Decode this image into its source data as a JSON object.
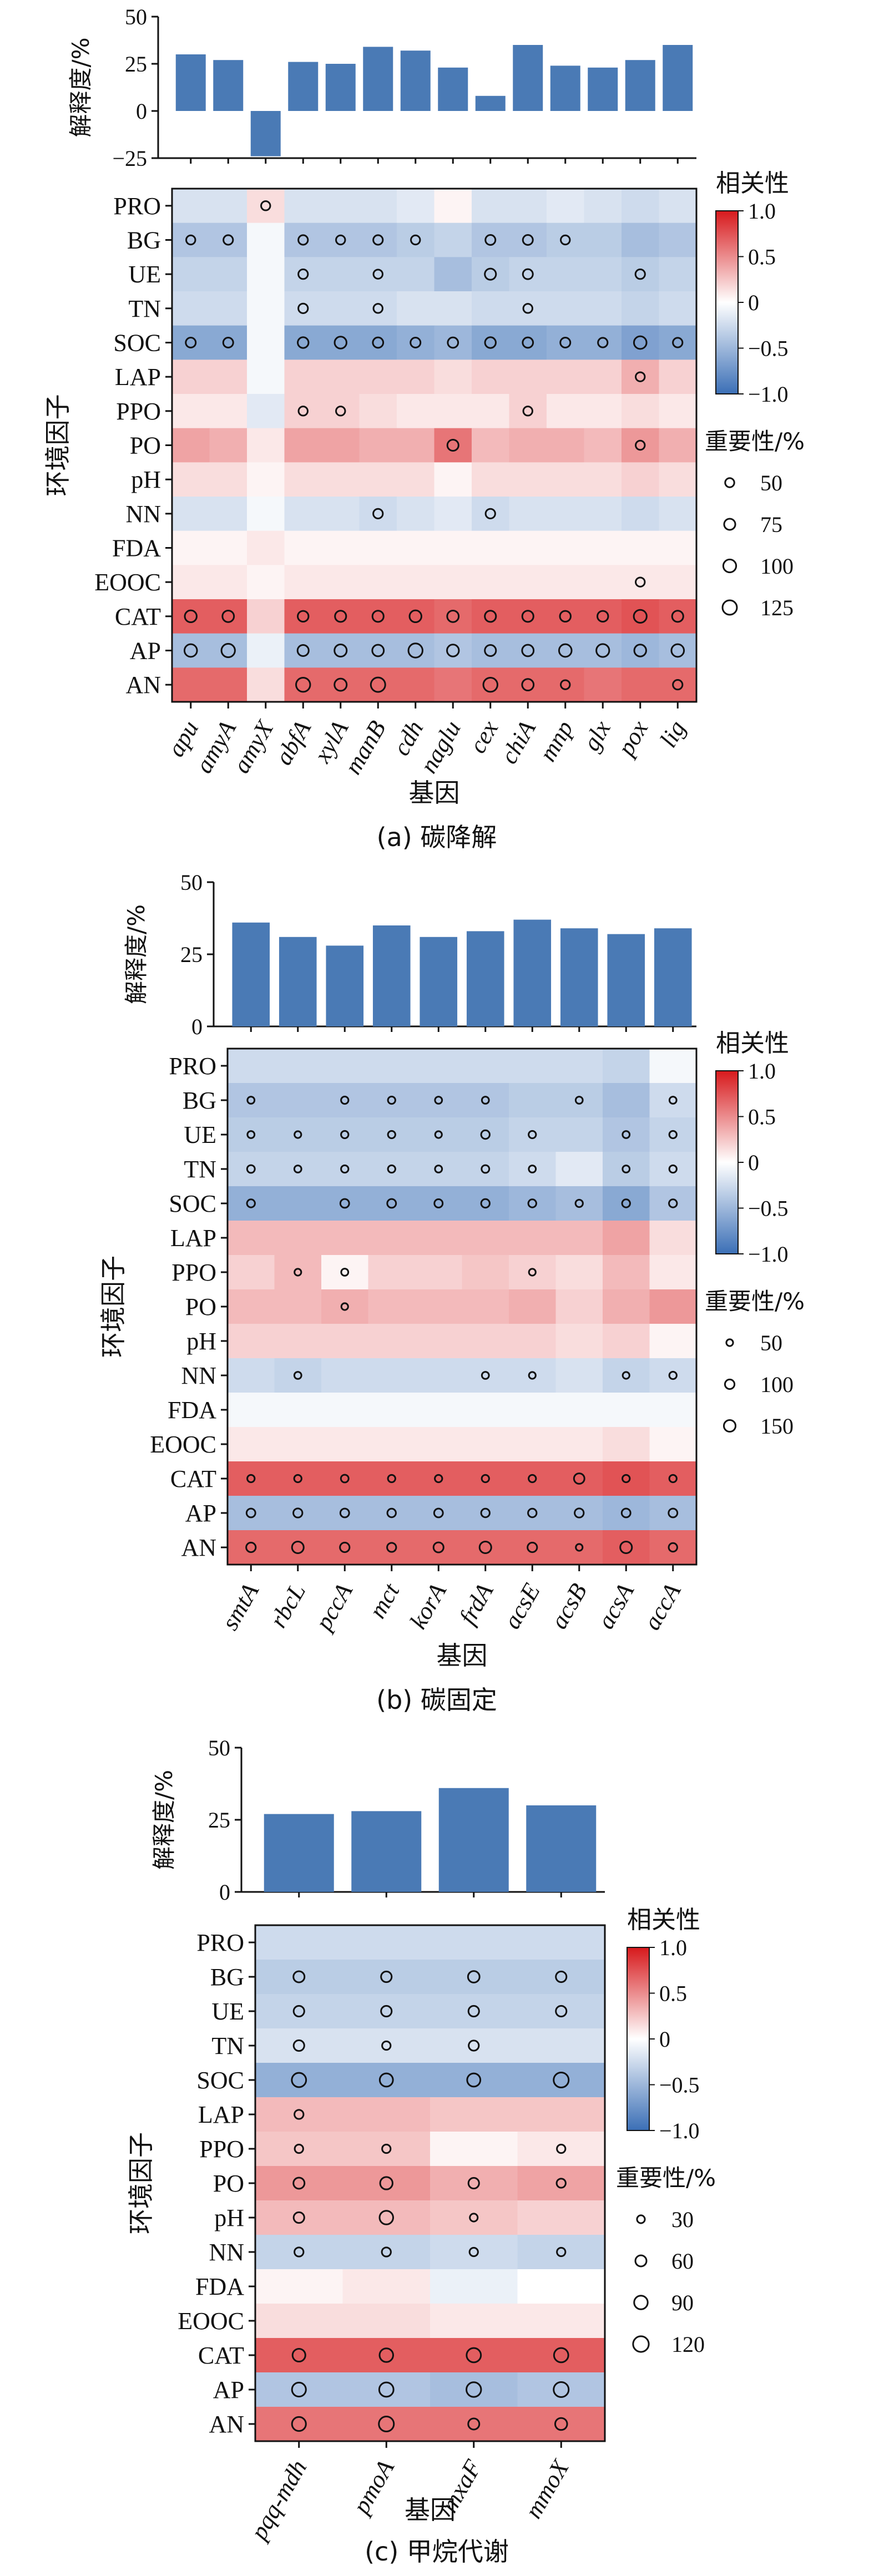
{
  "colorbar": {
    "low": "#3b6fb6",
    "mid": "#ffffff",
    "high": "#d7191c"
  },
  "bar_color": "#4a7ab5",
  "chart_data": [
    {
      "id": "a",
      "type": "heatmap",
      "caption": "(a) 碳降解",
      "xlabel": "基因",
      "ylabel": "环境因子",
      "bar_ylabel": "解释度/%",
      "bar_yticks": [
        "50",
        "25",
        "0",
        "−25"
      ],
      "bar_ylim": [
        -25,
        50
      ],
      "legend_corr_title": "相关性",
      "legend_corr_ticks": [
        "1.0",
        "0.5",
        "0",
        "−0.5",
        "−1.0"
      ],
      "legend_size_title": "重要性/%",
      "legend_size_values": [
        "50",
        "75",
        "100",
        "125"
      ],
      "genes": [
        "apu",
        "amyA",
        "amyX",
        "abfA",
        "xylA",
        "manB",
        "cdh",
        "naglu",
        "cex",
        "chiA",
        "mnp",
        "glx",
        "pox",
        "lig"
      ],
      "factors": [
        "PRO",
        "BG",
        "UE",
        "TN",
        "SOC",
        "LAP",
        "PPO",
        "PO",
        "pH",
        "NN",
        "FDA",
        "EOOC",
        "CAT",
        "AP",
        "AN"
      ],
      "explained": [
        30,
        27,
        -24,
        26,
        25,
        34,
        32,
        23,
        8,
        35,
        24,
        23,
        27,
        35
      ],
      "corr": [
        [
          -0.2,
          -0.2,
          0.15,
          -0.2,
          -0.2,
          -0.2,
          -0.15,
          0.05,
          -0.2,
          -0.2,
          -0.15,
          -0.2,
          -0.25,
          -0.2
        ],
        [
          -0.4,
          -0.4,
          -0.05,
          -0.4,
          -0.4,
          -0.4,
          -0.35,
          -0.3,
          -0.4,
          -0.4,
          -0.35,
          -0.35,
          -0.45,
          -0.4
        ],
        [
          -0.3,
          -0.3,
          -0.05,
          -0.3,
          -0.3,
          -0.3,
          -0.3,
          -0.45,
          -0.35,
          -0.3,
          -0.3,
          -0.3,
          -0.35,
          -0.3
        ],
        [
          -0.25,
          -0.25,
          -0.05,
          -0.25,
          -0.25,
          -0.25,
          -0.2,
          -0.2,
          -0.25,
          -0.25,
          -0.25,
          -0.25,
          -0.3,
          -0.25
        ],
        [
          -0.6,
          -0.6,
          -0.05,
          -0.6,
          -0.6,
          -0.6,
          -0.55,
          -0.5,
          -0.6,
          -0.6,
          -0.55,
          -0.55,
          -0.65,
          -0.6
        ],
        [
          0.2,
          0.2,
          -0.05,
          0.2,
          0.2,
          0.2,
          0.2,
          0.15,
          0.2,
          0.2,
          0.2,
          0.2,
          0.35,
          0.2
        ],
        [
          0.1,
          0.1,
          -0.15,
          0.2,
          0.2,
          0.15,
          0.1,
          0.1,
          0.1,
          0.2,
          0.1,
          0.1,
          0.15,
          0.1
        ],
        [
          0.4,
          0.35,
          0.1,
          0.4,
          0.4,
          0.35,
          0.35,
          0.6,
          0.3,
          0.35,
          0.35,
          0.3,
          0.45,
          0.35
        ],
        [
          0.15,
          0.15,
          0.05,
          0.15,
          0.15,
          0.15,
          0.15,
          0.05,
          0.15,
          0.15,
          0.15,
          0.15,
          0.2,
          0.15
        ],
        [
          -0.2,
          -0.2,
          -0.05,
          -0.2,
          -0.2,
          -0.25,
          -0.2,
          -0.15,
          -0.25,
          -0.2,
          -0.2,
          -0.2,
          -0.25,
          -0.2
        ],
        [
          0.05,
          0.05,
          0.1,
          0.05,
          0.05,
          0.05,
          0.05,
          0.05,
          0.05,
          0.05,
          0.05,
          0.05,
          0.05,
          0.05
        ],
        [
          0.1,
          0.1,
          0.05,
          0.1,
          0.1,
          0.1,
          0.1,
          0.1,
          0.1,
          0.1,
          0.1,
          0.1,
          0.1,
          0.1
        ],
        [
          0.7,
          0.7,
          0.2,
          0.7,
          0.7,
          0.7,
          0.7,
          0.65,
          0.7,
          0.7,
          0.7,
          0.7,
          0.75,
          0.7
        ],
        [
          -0.45,
          -0.45,
          -0.1,
          -0.45,
          -0.45,
          -0.45,
          -0.45,
          -0.4,
          -0.45,
          -0.45,
          -0.45,
          -0.45,
          -0.5,
          -0.45
        ],
        [
          0.65,
          0.65,
          0.15,
          0.65,
          0.65,
          0.65,
          0.65,
          0.6,
          0.65,
          0.65,
          0.65,
          0.6,
          0.65,
          0.65
        ]
      ],
      "importance": [
        [
          0,
          0,
          50,
          0,
          0,
          0,
          0,
          0,
          0,
          0,
          0,
          0,
          0,
          0
        ],
        [
          50,
          55,
          0,
          55,
          50,
          55,
          50,
          0,
          60,
          60,
          50,
          0,
          0,
          0
        ],
        [
          0,
          0,
          0,
          55,
          0,
          50,
          0,
          0,
          75,
          60,
          0,
          0,
          55,
          0
        ],
        [
          0,
          0,
          0,
          55,
          0,
          50,
          0,
          0,
          0,
          50,
          0,
          0,
          0,
          0
        ],
        [
          60,
          60,
          0,
          70,
          85,
          65,
          60,
          65,
          70,
          65,
          60,
          55,
          95,
          55
        ],
        [
          0,
          0,
          0,
          0,
          0,
          0,
          0,
          0,
          0,
          0,
          0,
          0,
          50,
          0
        ],
        [
          0,
          0,
          0,
          50,
          50,
          0,
          0,
          0,
          0,
          50,
          0,
          0,
          0,
          0
        ],
        [
          0,
          0,
          0,
          0,
          0,
          0,
          0,
          75,
          0,
          0,
          0,
          0,
          50,
          0
        ],
        [
          0,
          0,
          0,
          0,
          0,
          0,
          0,
          0,
          0,
          0,
          0,
          0,
          0,
          0
        ],
        [
          0,
          0,
          0,
          0,
          0,
          55,
          0,
          0,
          55,
          0,
          0,
          0,
          0,
          0
        ],
        [
          0,
          0,
          0,
          0,
          0,
          0,
          0,
          0,
          0,
          0,
          0,
          0,
          0,
          0
        ],
        [
          0,
          0,
          0,
          0,
          0,
          0,
          0,
          0,
          0,
          0,
          0,
          0,
          50,
          0
        ],
        [
          85,
          80,
          0,
          70,
          75,
          75,
          85,
          80,
          75,
          75,
          70,
          70,
          100,
          75
        ],
        [
          95,
          110,
          0,
          75,
          90,
          80,
          120,
          85,
          75,
          80,
          95,
          100,
          85,
          95
        ],
        [
          0,
          0,
          0,
          120,
          90,
          125,
          0,
          0,
          120,
          80,
          50,
          0,
          0,
          55
        ]
      ]
    },
    {
      "id": "b",
      "type": "heatmap",
      "caption": "(b) 碳固定",
      "xlabel": "基因",
      "ylabel": "环境因子",
      "bar_ylabel": "解释度/%",
      "bar_yticks": [
        "50",
        "25",
        "0"
      ],
      "bar_ylim": [
        0,
        50
      ],
      "legend_corr_title": "相关性",
      "legend_corr_ticks": [
        "1.0",
        "0.5",
        "0",
        "−0.5",
        "−1.0"
      ],
      "legend_size_title": "重要性/%",
      "legend_size_values": [
        "50",
        "100",
        "150"
      ],
      "genes": [
        "smtA",
        "rbcL",
        "pccA",
        "mct",
        "korA",
        "frdA",
        "acsE",
        "acsB",
        "acsA",
        "accA"
      ],
      "factors": [
        "PRO",
        "BG",
        "UE",
        "TN",
        "SOC",
        "LAP",
        "PPO",
        "PO",
        "pH",
        "NN",
        "FDA",
        "EOOC",
        "CAT",
        "AP",
        "AN"
      ],
      "explained": [
        36,
        31,
        28,
        35,
        31,
        33,
        37,
        34,
        32,
        34
      ],
      "corr": [
        [
          -0.25,
          -0.25,
          -0.25,
          -0.25,
          -0.25,
          -0.25,
          -0.25,
          -0.25,
          -0.3,
          -0.05
        ],
        [
          -0.4,
          -0.4,
          -0.4,
          -0.4,
          -0.4,
          -0.4,
          -0.35,
          -0.35,
          -0.45,
          -0.25
        ],
        [
          -0.35,
          -0.35,
          -0.35,
          -0.35,
          -0.35,
          -0.35,
          -0.3,
          -0.3,
          -0.4,
          -0.3
        ],
        [
          -0.3,
          -0.3,
          -0.3,
          -0.3,
          -0.3,
          -0.3,
          -0.25,
          -0.15,
          -0.35,
          -0.25
        ],
        [
          -0.55,
          -0.55,
          -0.55,
          -0.55,
          -0.55,
          -0.55,
          -0.5,
          -0.45,
          -0.6,
          -0.4
        ],
        [
          0.3,
          0.3,
          0.3,
          0.3,
          0.3,
          0.3,
          0.3,
          0.3,
          0.4,
          0.15
        ],
        [
          0.2,
          0.3,
          0.05,
          0.2,
          0.2,
          0.25,
          0.2,
          0.15,
          0.3,
          0.1
        ],
        [
          0.3,
          0.3,
          0.35,
          0.3,
          0.3,
          0.3,
          0.35,
          0.2,
          0.35,
          0.45
        ],
        [
          0.2,
          0.2,
          0.2,
          0.2,
          0.2,
          0.2,
          0.2,
          0.15,
          0.2,
          0.05
        ],
        [
          -0.25,
          -0.3,
          -0.25,
          -0.25,
          -0.25,
          -0.25,
          -0.25,
          -0.2,
          -0.3,
          -0.25
        ],
        [
          -0.05,
          -0.05,
          -0.05,
          -0.05,
          -0.05,
          -0.05,
          -0.05,
          -0.05,
          -0.05,
          -0.05
        ],
        [
          0.1,
          0.1,
          0.1,
          0.1,
          0.1,
          0.1,
          0.1,
          0.1,
          0.15,
          0.05
        ],
        [
          0.7,
          0.7,
          0.7,
          0.7,
          0.7,
          0.7,
          0.7,
          0.7,
          0.75,
          0.7
        ],
        [
          -0.45,
          -0.45,
          -0.45,
          -0.45,
          -0.45,
          -0.45,
          -0.45,
          -0.45,
          -0.5,
          -0.45
        ],
        [
          0.65,
          0.65,
          0.65,
          0.65,
          0.65,
          0.65,
          0.65,
          0.65,
          0.7,
          0.65
        ]
      ],
      "importance": [
        [
          0,
          0,
          0,
          0,
          0,
          0,
          0,
          0,
          0,
          0
        ],
        [
          55,
          0,
          60,
          60,
          55,
          55,
          0,
          55,
          0,
          55
        ],
        [
          55,
          50,
          60,
          60,
          50,
          80,
          60,
          0,
          55,
          60
        ],
        [
          65,
          55,
          60,
          60,
          55,
          65,
          55,
          0,
          55,
          60
        ],
        [
          70,
          0,
          85,
          85,
          75,
          80,
          70,
          60,
          70,
          70
        ],
        [
          0,
          0,
          0,
          0,
          0,
          0,
          0,
          0,
          0,
          0
        ],
        [
          0,
          50,
          55,
          0,
          0,
          0,
          50,
          0,
          0,
          0
        ],
        [
          0,
          0,
          50,
          0,
          0,
          0,
          0,
          0,
          0,
          0
        ],
        [
          0,
          0,
          0,
          0,
          0,
          0,
          0,
          0,
          0,
          0
        ],
        [
          0,
          55,
          0,
          0,
          0,
          55,
          50,
          0,
          50,
          60
        ],
        [
          0,
          0,
          0,
          0,
          0,
          0,
          0,
          0,
          0,
          0
        ],
        [
          0,
          0,
          0,
          0,
          0,
          0,
          0,
          0,
          0,
          0
        ],
        [
          60,
          60,
          65,
          60,
          60,
          60,
          60,
          120,
          60,
          60
        ],
        [
          85,
          90,
          85,
          80,
          85,
          80,
          80,
          90,
          85,
          85
        ],
        [
          100,
          150,
          100,
          90,
          110,
          150,
          100,
          50,
          150,
          80
        ]
      ]
    },
    {
      "id": "c",
      "type": "heatmap",
      "caption": "(c) 甲烷代谢",
      "xlabel": "基因",
      "ylabel": "环境因子",
      "bar_ylabel": "解释度/%",
      "bar_yticks": [
        "50",
        "25",
        "0"
      ],
      "bar_ylim": [
        0,
        50
      ],
      "legend_corr_title": "相关性",
      "legend_corr_ticks": [
        "1.0",
        "0.5",
        "0",
        "−0.5",
        "−1.0"
      ],
      "legend_size_title": "重要性/%",
      "legend_size_values": [
        "30",
        "60",
        "90",
        "120"
      ],
      "genes": [
        "pqq-mdh",
        "pmoA",
        "mxaF",
        "mmoX"
      ],
      "factors": [
        "PRO",
        "BG",
        "UE",
        "TN",
        "SOC",
        "LAP",
        "PPO",
        "PO",
        "pH",
        "NN",
        "FDA",
        "EOOC",
        "CAT",
        "AP",
        "AN"
      ],
      "explained": [
        27,
        28,
        36,
        30
      ],
      "corr": [
        [
          -0.25,
          -0.25,
          -0.25,
          -0.25
        ],
        [
          -0.35,
          -0.35,
          -0.35,
          -0.35
        ],
        [
          -0.3,
          -0.3,
          -0.3,
          -0.3
        ],
        [
          -0.2,
          -0.2,
          -0.2,
          -0.2
        ],
        [
          -0.55,
          -0.55,
          -0.55,
          -0.55
        ],
        [
          0.3,
          0.3,
          0.25,
          0.25
        ],
        [
          0.25,
          0.25,
          0.05,
          0.1
        ],
        [
          0.45,
          0.45,
          0.35,
          0.4
        ],
        [
          0.3,
          0.3,
          0.25,
          0.2
        ],
        [
          -0.3,
          -0.3,
          -0.25,
          -0.3
        ],
        [
          0.05,
          0.1,
          -0.1,
          0.0
        ],
        [
          0.15,
          0.15,
          0.1,
          0.1
        ],
        [
          0.7,
          0.7,
          0.7,
          0.7
        ],
        [
          -0.4,
          -0.4,
          -0.45,
          -0.4
        ],
        [
          0.6,
          0.6,
          0.6,
          0.6
        ]
      ],
      "importance": [
        [
          0,
          0,
          0,
          0
        ],
        [
          60,
          55,
          65,
          55
        ],
        [
          55,
          55,
          55,
          55
        ],
        [
          55,
          35,
          50,
          0
        ],
        [
          100,
          85,
          85,
          110
        ],
        [
          40,
          0,
          0,
          0
        ],
        [
          35,
          35,
          0,
          35
        ],
        [
          60,
          75,
          55,
          40
        ],
        [
          55,
          90,
          30,
          0
        ],
        [
          40,
          40,
          35,
          35
        ],
        [
          0,
          0,
          0,
          0
        ],
        [
          0,
          0,
          0,
          0
        ],
        [
          80,
          90,
          100,
          100
        ],
        [
          95,
          100,
          105,
          110
        ],
        [
          95,
          110,
          60,
          70
        ]
      ]
    }
  ]
}
